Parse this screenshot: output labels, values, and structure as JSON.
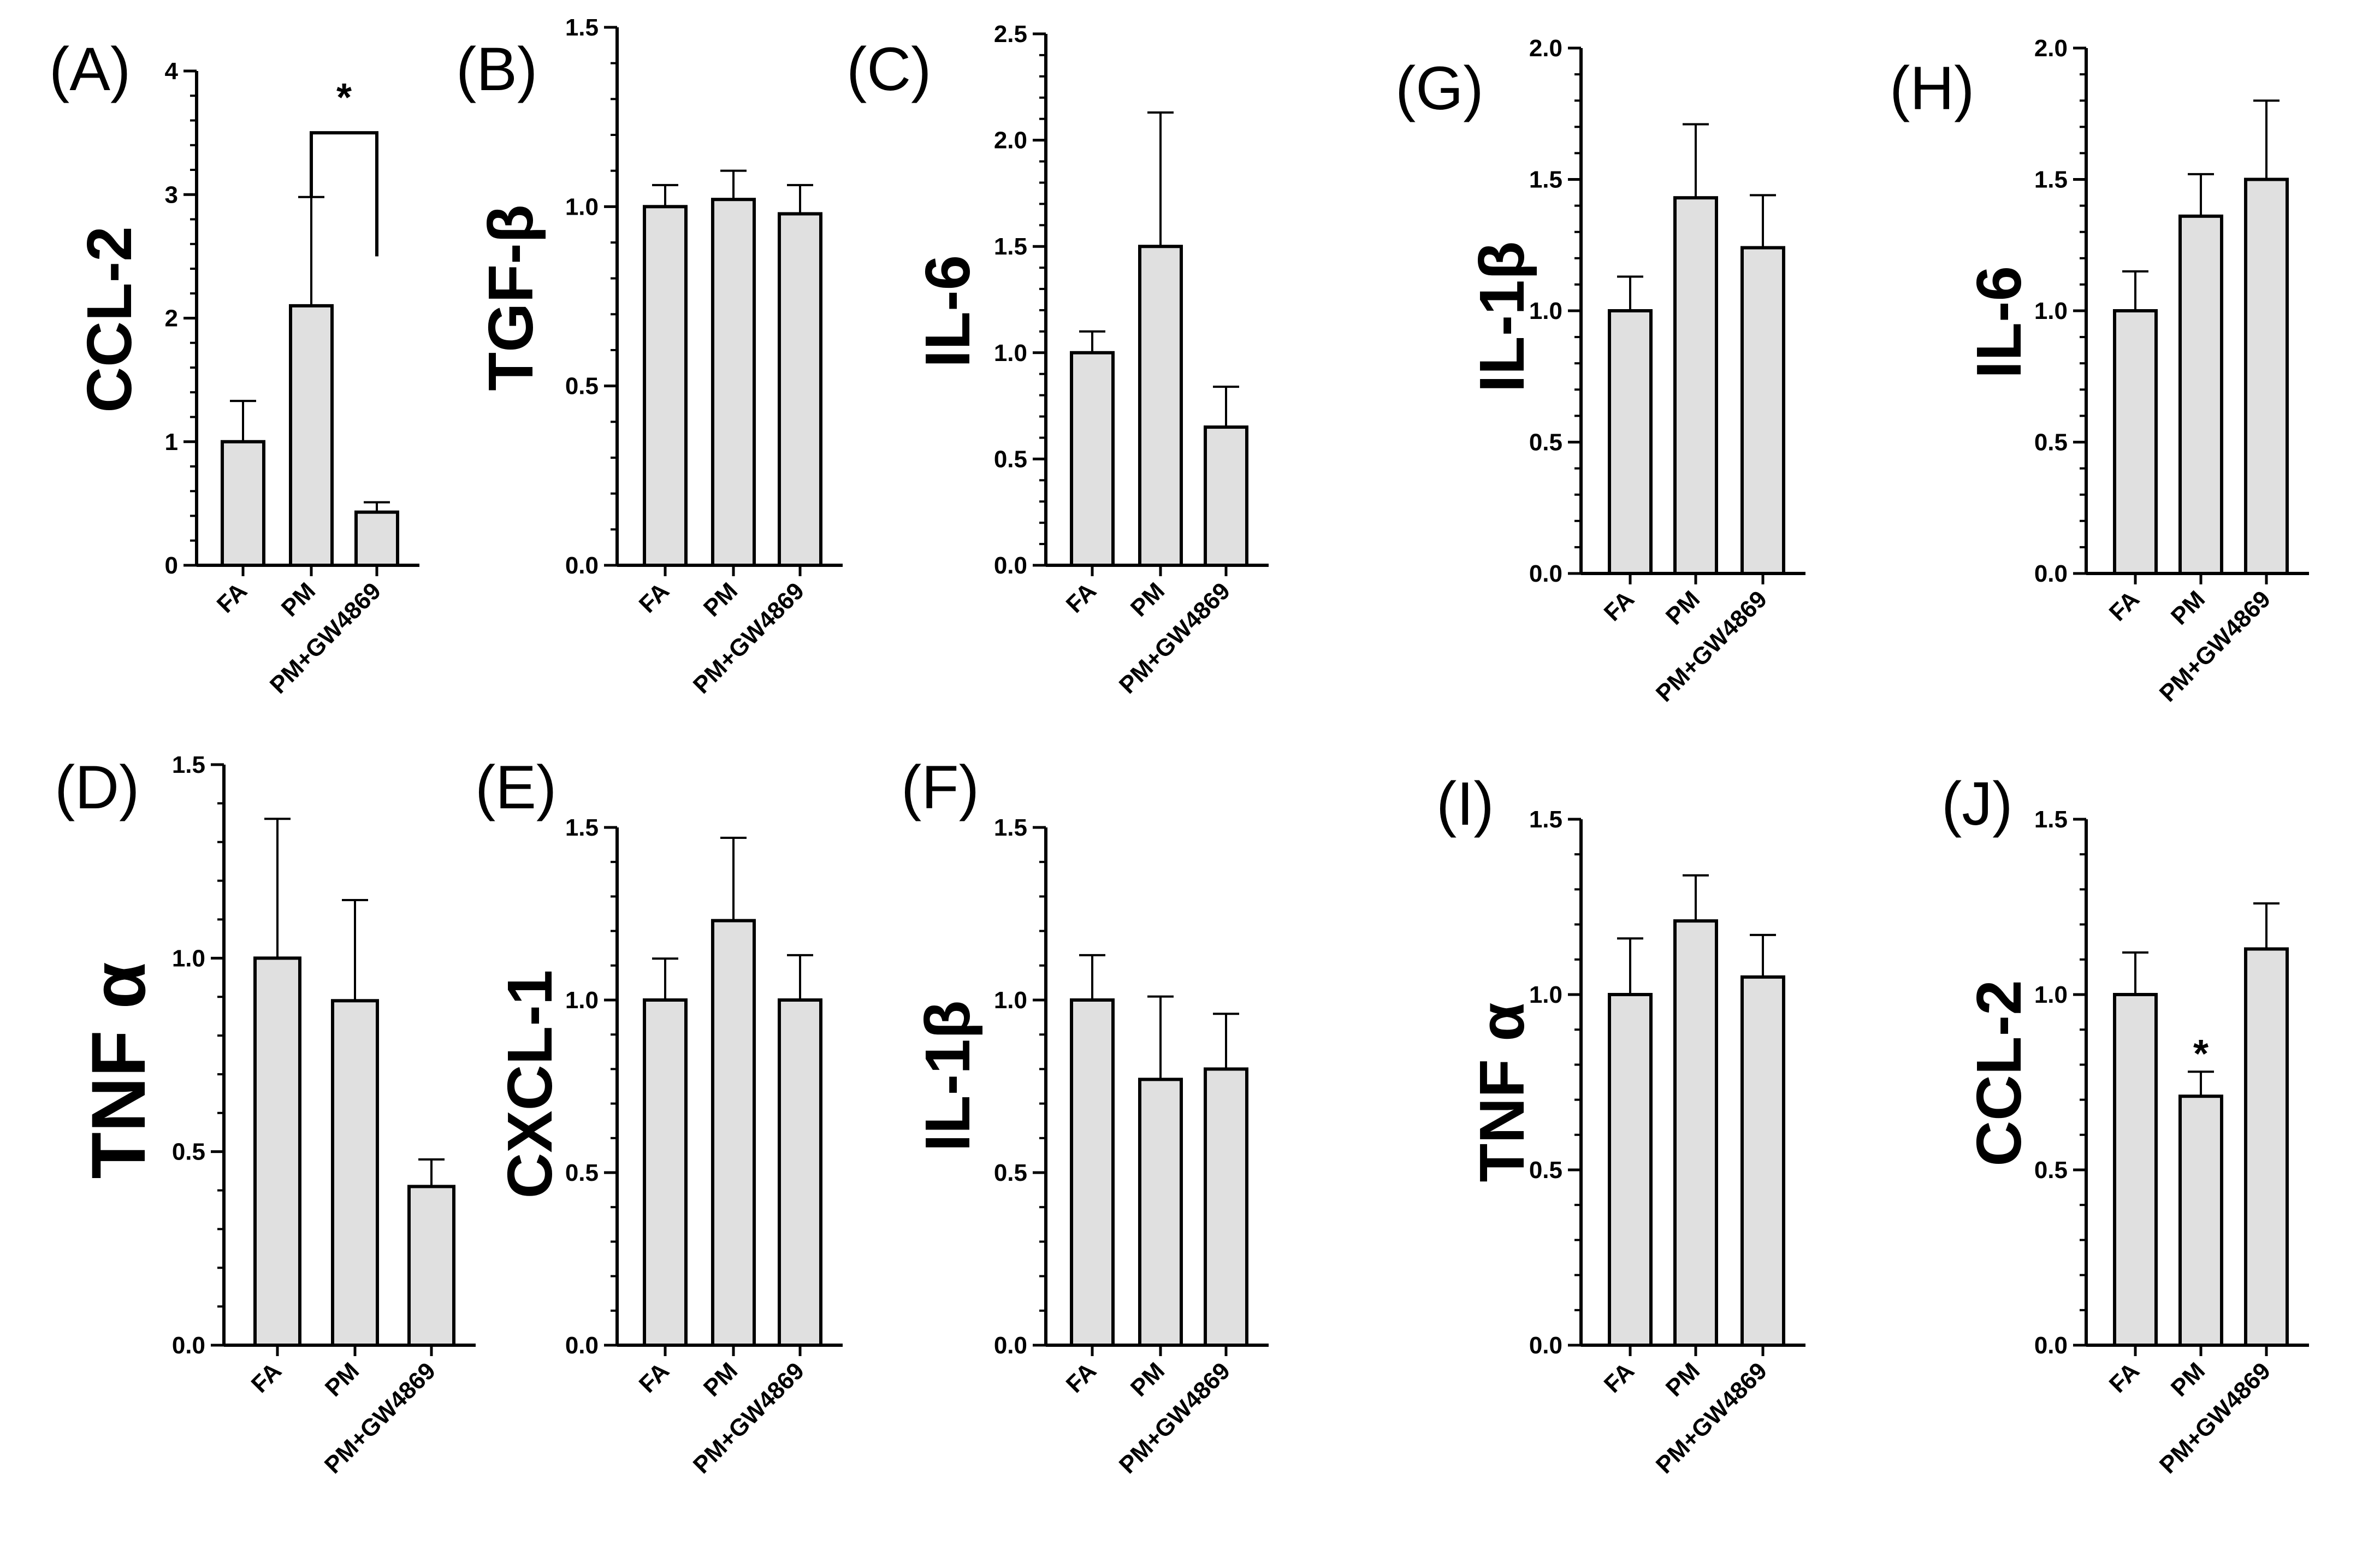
{
  "figure": {
    "description_free": true
  },
  "chart_data": [
    {
      "id": "A",
      "panel_label": "(A)",
      "type": "bar",
      "ylabel": "CCL-2",
      "categories": [
        "FA",
        "PM",
        "PM+GW4869"
      ],
      "values": [
        1.0,
        2.1,
        0.43
      ],
      "errors": [
        0.33,
        0.88,
        0.08
      ],
      "ylim": [
        0,
        4
      ],
      "major_ticks": [
        0,
        1,
        2,
        3,
        4
      ],
      "tick_labels": [
        "0",
        "1",
        "2",
        "3",
        "4"
      ],
      "annotations": [
        {
          "type": "bracket",
          "from": 1,
          "to": 2,
          "label": "*",
          "y": 3.5
        }
      ]
    },
    {
      "id": "B",
      "panel_label": "(B)",
      "type": "bar",
      "ylabel": "TGF-β",
      "categories": [
        "FA",
        "PM",
        "PM+GW4869"
      ],
      "values": [
        1.0,
        1.02,
        0.98
      ],
      "errors": [
        0.06,
        0.08,
        0.08
      ],
      "ylim": [
        0,
        1.5
      ],
      "major_ticks": [
        0,
        0.5,
        1.0,
        1.5
      ],
      "tick_labels": [
        "0.0",
        "0.5",
        "1.0",
        "1.5"
      ]
    },
    {
      "id": "C",
      "panel_label": "(C)",
      "type": "bar",
      "ylabel": "IL-6",
      "categories": [
        "FA",
        "PM",
        "PM+GW4869"
      ],
      "values": [
        1.0,
        1.5,
        0.65
      ],
      "errors": [
        0.1,
        0.63,
        0.19
      ],
      "ylim": [
        0,
        2.5
      ],
      "major_ticks": [
        0,
        0.5,
        1.0,
        1.5,
        2.0,
        2.5
      ],
      "tick_labels": [
        "0.0",
        "0.5",
        "1.0",
        "1.5",
        "2.0",
        "2.5"
      ]
    },
    {
      "id": "G",
      "panel_label": "(G)",
      "type": "bar",
      "ylabel": "IL-1β",
      "categories": [
        "FA",
        "PM",
        "PM+GW4869"
      ],
      "values": [
        1.0,
        1.43,
        1.24
      ],
      "errors": [
        0.13,
        0.28,
        0.2
      ],
      "ylim": [
        0,
        2.0
      ],
      "major_ticks": [
        0,
        0.5,
        1.0,
        1.5,
        2.0
      ],
      "tick_labels": [
        "0.0",
        "0.5",
        "1.0",
        "1.5",
        "2.0"
      ]
    },
    {
      "id": "H",
      "panel_label": "(H)",
      "type": "bar",
      "ylabel": "IL-6",
      "categories": [
        "FA",
        "PM",
        "PM+GW4869"
      ],
      "values": [
        1.0,
        1.36,
        1.5
      ],
      "errors": [
        0.15,
        0.16,
        0.3
      ],
      "ylim": [
        0,
        2.0
      ],
      "major_ticks": [
        0,
        0.5,
        1.0,
        1.5,
        2.0
      ],
      "tick_labels": [
        "0.0",
        "0.5",
        "1.0",
        "1.5",
        "2.0"
      ]
    },
    {
      "id": "D",
      "panel_label": "(D)",
      "type": "bar",
      "ylabel": "TNF α",
      "categories": [
        "FA",
        "PM",
        "PM+GW4869"
      ],
      "values": [
        1.0,
        0.89,
        0.41
      ],
      "errors": [
        0.36,
        0.26,
        0.07
      ],
      "ylim": [
        0,
        1.5
      ],
      "major_ticks": [
        0,
        0.5,
        1.0,
        1.5
      ],
      "tick_labels": [
        "0.0",
        "0.5",
        "1.0",
        "1.5"
      ]
    },
    {
      "id": "E",
      "panel_label": "(E)",
      "type": "bar",
      "ylabel": "CXCL-1",
      "categories": [
        "FA",
        "PM",
        "PM+GW4869"
      ],
      "values": [
        1.0,
        1.23,
        1.0
      ],
      "errors": [
        0.12,
        0.24,
        0.13
      ],
      "ylim": [
        0,
        1.5
      ],
      "major_ticks": [
        0,
        0.5,
        1.0,
        1.5
      ],
      "tick_labels": [
        "0.0",
        "0.5",
        "1.0",
        "1.5"
      ]
    },
    {
      "id": "F",
      "panel_label": "(F)",
      "type": "bar",
      "ylabel": "IL-1β",
      "categories": [
        "FA",
        "PM",
        "PM+GW4869"
      ],
      "values": [
        1.0,
        0.77,
        0.8
      ],
      "errors": [
        0.13,
        0.24,
        0.16
      ],
      "ylim": [
        0,
        1.5
      ],
      "major_ticks": [
        0,
        0.5,
        1.0,
        1.5
      ],
      "tick_labels": [
        "0.0",
        "0.5",
        "1.0",
        "1.5"
      ]
    },
    {
      "id": "I",
      "panel_label": "(I)",
      "type": "bar",
      "ylabel": "TNF α",
      "categories": [
        "FA",
        "PM",
        "PM+GW4869"
      ],
      "values": [
        1.0,
        1.21,
        1.05
      ],
      "errors": [
        0.16,
        0.13,
        0.12
      ],
      "ylim": [
        0,
        1.5
      ],
      "major_ticks": [
        0,
        0.5,
        1.0,
        1.5
      ],
      "tick_labels": [
        "0.0",
        "0.5",
        "1.0",
        "1.5"
      ]
    },
    {
      "id": "J",
      "panel_label": "(J)",
      "type": "bar",
      "ylabel": "CCL-2",
      "categories": [
        "FA",
        "PM",
        "PM+GW4869"
      ],
      "values": [
        1.0,
        0.71,
        1.13
      ],
      "errors": [
        0.12,
        0.07,
        0.13
      ],
      "ylim": [
        0,
        1.5
      ],
      "major_ticks": [
        0,
        0.5,
        1.0,
        1.5
      ],
      "tick_labels": [
        "0.0",
        "0.5",
        "1.0",
        "1.5"
      ],
      "annotations": [
        {
          "type": "star",
          "at": 1,
          "label": "*"
        }
      ]
    }
  ],
  "style": {
    "bar_fill": "#e0e0e0",
    "stroke": "#000000"
  }
}
